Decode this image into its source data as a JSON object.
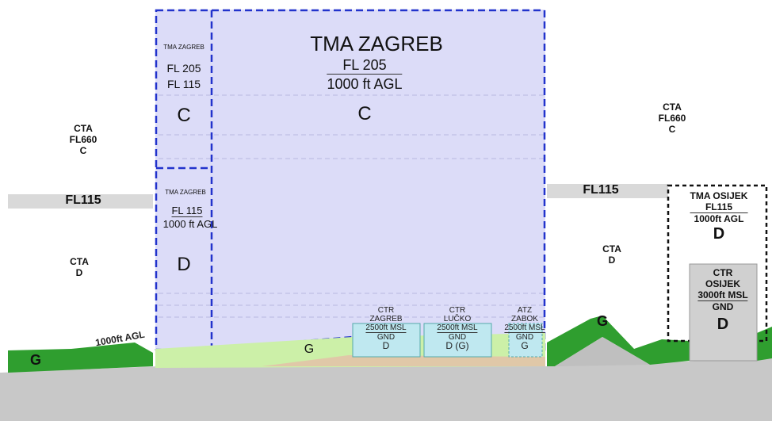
{
  "left": {
    "cta_upper": [
      "CTA",
      "FL660",
      "C"
    ],
    "fl_band": "FL115",
    "cta_lower": [
      "CTA",
      "D"
    ],
    "floor": "1000ft AGL",
    "class_g": "G"
  },
  "tma_zagreb": {
    "name": "TMA ZAGREB",
    "upper": "FL 205",
    "lower": "1000 ft AGL",
    "class": "C"
  },
  "tma_zagreb_west_upper": {
    "name": "TMA ZAGREB",
    "upper": "FL 205",
    "lower": "FL 115",
    "class": "C"
  },
  "tma_zagreb_west_lower": {
    "name": "TMA ZAGREB",
    "upper": "FL 115",
    "lower": "1000 ft AGL",
    "class": "D"
  },
  "ground_class": "G",
  "zones": [
    {
      "name": [
        "CTR",
        "ZAGREB"
      ],
      "upper": "2500ft MSL",
      "lower": "GND",
      "class": "D"
    },
    {
      "name": [
        "CTR",
        "LUČKO"
      ],
      "upper": "2500ft MSL",
      "lower": "GND",
      "class": "D (G)"
    },
    {
      "name": [
        "ATZ",
        "ZABOK"
      ],
      "upper": "2500ft MSL",
      "lower": "GND",
      "class": "G"
    }
  ],
  "right": {
    "cta_upper": [
      "CTA",
      "FL660",
      "C"
    ],
    "fl_band": "FL115",
    "cta_lower": [
      "CTA",
      "D"
    ],
    "class_g": "G",
    "tma_osijek": {
      "name": "TMA OSIJEK",
      "upper": "FL115",
      "lower": "1000ft AGL",
      "class": "D"
    },
    "ctr_osijek": {
      "name": [
        "CTR",
        "OSIJEK"
      ],
      "upper": "3000ft MSL",
      "lower": "GND",
      "class": "D"
    }
  }
}
